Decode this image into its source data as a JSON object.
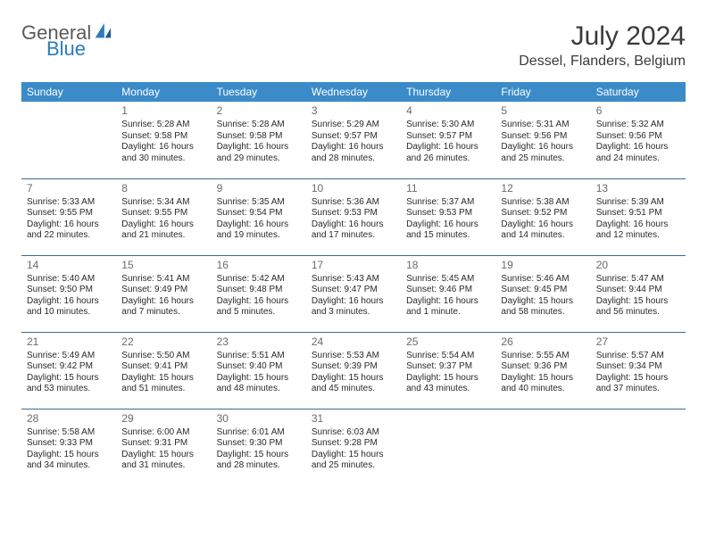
{
  "logo": {
    "text1": "General",
    "text2": "Blue"
  },
  "title": "July 2024",
  "subtitle": "Dessel, Flanders, Belgium",
  "colors": {
    "header_bg": "#3b8bc8",
    "header_text": "#ffffff",
    "row_border": "#3b6a8f",
    "daynum": "#6b6b6b",
    "body_text": "#2a2a2a",
    "logo_gray": "#5a5a5a",
    "logo_blue": "#2b7bbf",
    "page_bg": "#ffffff"
  },
  "fonts": {
    "title_pt": 30,
    "subtitle_pt": 16,
    "weekday_pt": 12,
    "daynum_pt": 12,
    "cell_pt": 10
  },
  "weekdays": [
    "Sunday",
    "Monday",
    "Tuesday",
    "Wednesday",
    "Thursday",
    "Friday",
    "Saturday"
  ],
  "weeks": [
    [
      null,
      {
        "d": "1",
        "sr": "5:28 AM",
        "ss": "9:58 PM",
        "dl": "16 hours and 30 minutes."
      },
      {
        "d": "2",
        "sr": "5:28 AM",
        "ss": "9:58 PM",
        "dl": "16 hours and 29 minutes."
      },
      {
        "d": "3",
        "sr": "5:29 AM",
        "ss": "9:57 PM",
        "dl": "16 hours and 28 minutes."
      },
      {
        "d": "4",
        "sr": "5:30 AM",
        "ss": "9:57 PM",
        "dl": "16 hours and 26 minutes."
      },
      {
        "d": "5",
        "sr": "5:31 AM",
        "ss": "9:56 PM",
        "dl": "16 hours and 25 minutes."
      },
      {
        "d": "6",
        "sr": "5:32 AM",
        "ss": "9:56 PM",
        "dl": "16 hours and 24 minutes."
      }
    ],
    [
      {
        "d": "7",
        "sr": "5:33 AM",
        "ss": "9:55 PM",
        "dl": "16 hours and 22 minutes."
      },
      {
        "d": "8",
        "sr": "5:34 AM",
        "ss": "9:55 PM",
        "dl": "16 hours and 21 minutes."
      },
      {
        "d": "9",
        "sr": "5:35 AM",
        "ss": "9:54 PM",
        "dl": "16 hours and 19 minutes."
      },
      {
        "d": "10",
        "sr": "5:36 AM",
        "ss": "9:53 PM",
        "dl": "16 hours and 17 minutes."
      },
      {
        "d": "11",
        "sr": "5:37 AM",
        "ss": "9:53 PM",
        "dl": "16 hours and 15 minutes."
      },
      {
        "d": "12",
        "sr": "5:38 AM",
        "ss": "9:52 PM",
        "dl": "16 hours and 14 minutes."
      },
      {
        "d": "13",
        "sr": "5:39 AM",
        "ss": "9:51 PM",
        "dl": "16 hours and 12 minutes."
      }
    ],
    [
      {
        "d": "14",
        "sr": "5:40 AM",
        "ss": "9:50 PM",
        "dl": "16 hours and 10 minutes."
      },
      {
        "d": "15",
        "sr": "5:41 AM",
        "ss": "9:49 PM",
        "dl": "16 hours and 7 minutes."
      },
      {
        "d": "16",
        "sr": "5:42 AM",
        "ss": "9:48 PM",
        "dl": "16 hours and 5 minutes."
      },
      {
        "d": "17",
        "sr": "5:43 AM",
        "ss": "9:47 PM",
        "dl": "16 hours and 3 minutes."
      },
      {
        "d": "18",
        "sr": "5:45 AM",
        "ss": "9:46 PM",
        "dl": "16 hours and 1 minute."
      },
      {
        "d": "19",
        "sr": "5:46 AM",
        "ss": "9:45 PM",
        "dl": "15 hours and 58 minutes."
      },
      {
        "d": "20",
        "sr": "5:47 AM",
        "ss": "9:44 PM",
        "dl": "15 hours and 56 minutes."
      }
    ],
    [
      {
        "d": "21",
        "sr": "5:49 AM",
        "ss": "9:42 PM",
        "dl": "15 hours and 53 minutes."
      },
      {
        "d": "22",
        "sr": "5:50 AM",
        "ss": "9:41 PM",
        "dl": "15 hours and 51 minutes."
      },
      {
        "d": "23",
        "sr": "5:51 AM",
        "ss": "9:40 PM",
        "dl": "15 hours and 48 minutes."
      },
      {
        "d": "24",
        "sr": "5:53 AM",
        "ss": "9:39 PM",
        "dl": "15 hours and 45 minutes."
      },
      {
        "d": "25",
        "sr": "5:54 AM",
        "ss": "9:37 PM",
        "dl": "15 hours and 43 minutes."
      },
      {
        "d": "26",
        "sr": "5:55 AM",
        "ss": "9:36 PM",
        "dl": "15 hours and 40 minutes."
      },
      {
        "d": "27",
        "sr": "5:57 AM",
        "ss": "9:34 PM",
        "dl": "15 hours and 37 minutes."
      }
    ],
    [
      {
        "d": "28",
        "sr": "5:58 AM",
        "ss": "9:33 PM",
        "dl": "15 hours and 34 minutes."
      },
      {
        "d": "29",
        "sr": "6:00 AM",
        "ss": "9:31 PM",
        "dl": "15 hours and 31 minutes."
      },
      {
        "d": "30",
        "sr": "6:01 AM",
        "ss": "9:30 PM",
        "dl": "15 hours and 28 minutes."
      },
      {
        "d": "31",
        "sr": "6:03 AM",
        "ss": "9:28 PM",
        "dl": "15 hours and 25 minutes."
      },
      null,
      null,
      null
    ]
  ],
  "labels": {
    "sunrise": "Sunrise: ",
    "sunset": "Sunset: ",
    "daylight": "Daylight: "
  }
}
